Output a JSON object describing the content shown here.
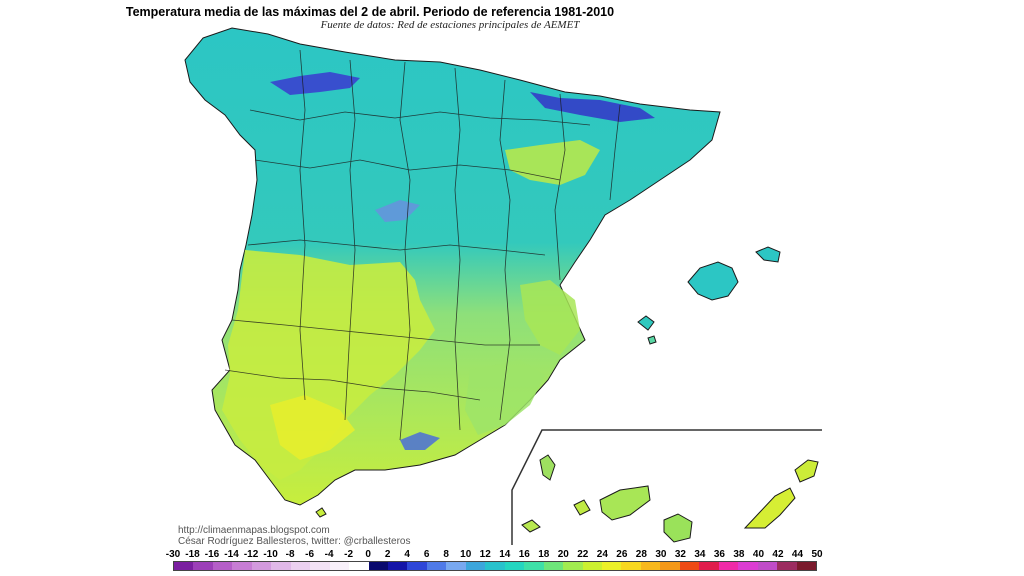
{
  "title": "Temperatura media de las máximas del 2 de abril. Periodo de referencia 1981-2010",
  "subtitle": "Fuente de datos: Red de estaciones principales de AEMET",
  "credits": {
    "url": "http://climaenmapas.blogspot.com",
    "author": "César Rodríguez Ballesteros, twitter: @crballesteros"
  },
  "legend": {
    "ticks": [
      "-30",
      "-18",
      "-16",
      "-14",
      "-12",
      "-10",
      "-8",
      "-6",
      "-4",
      "-2",
      "0",
      "2",
      "4",
      "6",
      "8",
      "10",
      "12",
      "14",
      "16",
      "18",
      "20",
      "22",
      "24",
      "26",
      "28",
      "30",
      "32",
      "34",
      "36",
      "38",
      "40",
      "42",
      "44",
      "50"
    ],
    "colors": [
      "#7a1fa0",
      "#9c3fb8",
      "#b55ec8",
      "#c77dd4",
      "#d39ade",
      "#e0b8e8",
      "#ebd0f0",
      "#f2e2f5",
      "#f8f0fa",
      "#ffffff",
      "#0a0a6e",
      "#1414a8",
      "#2e46d8",
      "#4f7ae8",
      "#78a8f0",
      "#3ca6dc",
      "#28c2cc",
      "#24d6c0",
      "#3ee0a8",
      "#6ee67a",
      "#a2ec50",
      "#ccf030",
      "#ecf028",
      "#f8d820",
      "#f8b81c",
      "#f49818",
      "#ee4a14",
      "#e01c4c",
      "#f02aa8",
      "#dc3cd2",
      "#c04cc8",
      "#9c2c60",
      "#7a1a2c"
    ]
  },
  "colors": {
    "land_cool": "#2cc6c4",
    "land_cold": "#5a8ed8",
    "land_mountain": "#3a3ad0",
    "land_warm": "#c8ee3c",
    "land_mild": "#7adc8c",
    "border": "#1a1a1a"
  }
}
